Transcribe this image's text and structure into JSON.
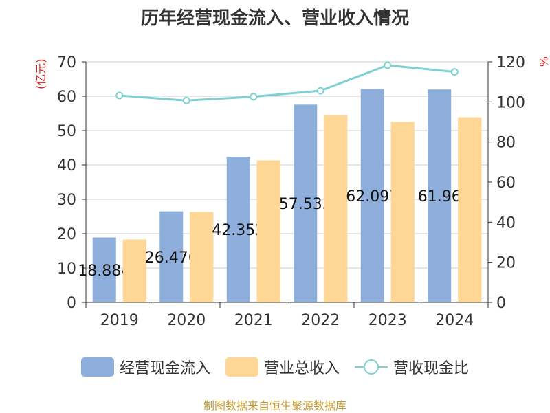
{
  "title": "历年经营现金流入、营业收入情况",
  "unit_left": "(亿元)",
  "unit_right": "%",
  "source": "制图数据来自恒生聚源数据库",
  "colors": {
    "series1": "#8eaedb",
    "series2": "#fed797",
    "line": "#7fd0d0",
    "unit": "#e02020",
    "source": "#c49a32",
    "grid": "#cccccc",
    "axis": "#333333"
  },
  "chart_data": {
    "type": "bar",
    "categories": [
      "2019",
      "2020",
      "2021",
      "2022",
      "2023",
      "2024"
    ],
    "series": [
      {
        "name": "经营现金流入",
        "values": [
          18.884,
          26.476,
          42.352,
          57.533,
          62.097,
          61.96
        ],
        "labels": [
          "18.884",
          "26.476",
          "42.352",
          "57.533",
          "62.097",
          "61.96"
        ]
      },
      {
        "name": "营业总收入",
        "values": [
          18.3,
          26.3,
          41.3,
          54.5,
          52.5,
          53.9
        ]
      }
    ],
    "line_series": {
      "name": "营收现金比",
      "values": [
        103.2,
        100.7,
        102.6,
        105.6,
        118.3,
        115.0
      ]
    },
    "y_left": {
      "min": 0,
      "max": 70,
      "ticks": [
        0,
        10,
        20,
        30,
        40,
        50,
        60,
        70
      ]
    },
    "y_right": {
      "min": 0,
      "max": 120,
      "ticks": [
        0,
        20,
        40,
        60,
        80,
        100,
        120
      ]
    },
    "grid": true,
    "legend_position": "bottom"
  }
}
